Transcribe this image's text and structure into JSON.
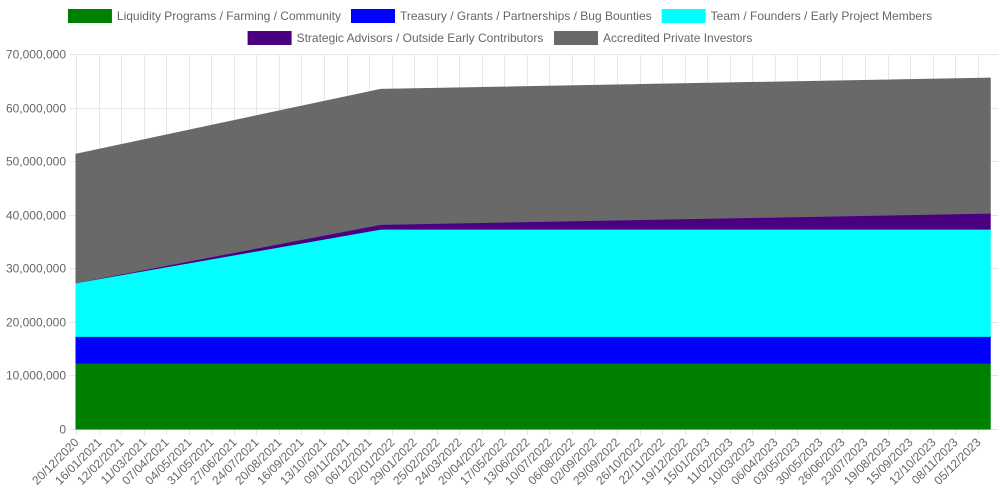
{
  "chart_data": {
    "type": "area",
    "stacked": true,
    "legend_position": "top",
    "grid": true,
    "ylim": [
      0,
      70000000
    ],
    "y_ticks": [
      0,
      10000000,
      20000000,
      30000000,
      40000000,
      50000000,
      60000000,
      70000000
    ],
    "y_tick_labels": [
      "0",
      "10,000,000",
      "20,000,000",
      "30,000,000",
      "40,000,000",
      "50,000,000",
      "60,000,000",
      "70,000,000"
    ],
    "x_tick_labels": [
      "20/12/2020",
      "16/01/2021",
      "12/02/2021",
      "11/03/2021",
      "07/04/2021",
      "04/05/2021",
      "31/05/2021",
      "27/06/2021",
      "24/07/2021",
      "20/08/2021",
      "16/09/2021",
      "13/10/2021",
      "09/11/2021",
      "06/12/2021",
      "02/01/2022",
      "29/01/2022",
      "25/02/2022",
      "24/03/2022",
      "20/04/2022",
      "17/05/2022",
      "13/06/2022",
      "10/07/2022",
      "06/08/2022",
      "02/09/2022",
      "29/09/2022",
      "26/10/2022",
      "22/11/2022",
      "19/12/2022",
      "15/01/2023",
      "11/02/2023",
      "10/03/2023",
      "06/04/2023",
      "03/05/2023",
      "30/05/2023",
      "26/06/2023",
      "23/07/2023",
      "19/08/2023",
      "15/09/2023",
      "12/10/2023",
      "08/11/2023",
      "05/12/2023"
    ],
    "x": [
      "20/12/2020",
      "20/12/2021",
      "20/12/2023"
    ],
    "series": [
      {
        "name": "Liquidity Programs / Farming / Community",
        "color": "#008000",
        "values": [
          12300000,
          12300000,
          12300000
        ]
      },
      {
        "name": "Treasury / Grants / Partnerships / Bug Bounties",
        "color": "#0000ff",
        "values": [
          5000000,
          5000000,
          5000000
        ]
      },
      {
        "name": "Team / Founders / Early Project Members",
        "color": "#00ffff",
        "values": [
          10000000,
          20000000,
          20000000
        ]
      },
      {
        "name": "Strategic Advisors / Outside Early Contributors",
        "color": "#4b0082",
        "values": [
          0,
          900000,
          3000000
        ]
      },
      {
        "name": "Accredited Private Investors",
        "color": "#696969",
        "values": [
          24000000,
          25200000,
          25200000
        ]
      }
    ]
  }
}
